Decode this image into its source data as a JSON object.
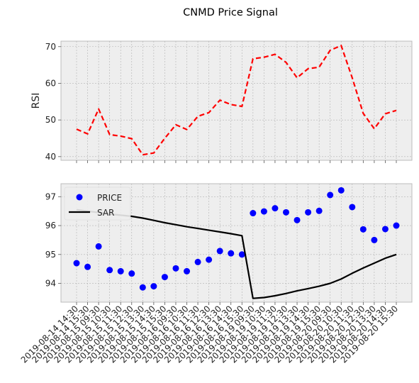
{
  "chart_data": {
    "title": "CNMD Price Signal",
    "x": [
      "2019-08-14 14:30",
      "2019-08-14 15:30",
      "2019-08-15 09:30",
      "2019-08-15 10:30",
      "2019-08-15 11:30",
      "2019-08-15 12:30",
      "2019-08-15 13:30",
      "2019-08-15 14:30",
      "2019-08-15 15:30",
      "2019-08-16 09:30",
      "2019-08-16 10:30",
      "2019-08-16 11:30",
      "2019-08-16 12:30",
      "2019-08-16 13:30",
      "2019-08-16 14:30",
      "2019-08-16 15:30",
      "2019-08-19 09:30",
      "2019-08-19 10:30",
      "2019-08-19 11:30",
      "2019-08-19 12:30",
      "2019-08-19 13:30",
      "2019-08-19 14:30",
      "2019-08-19 15:30",
      "2019-08-20 09:30",
      "2019-08-20 10:30",
      "2019-08-20 11:30",
      "2019-08-20 12:30",
      "2019-08-20 13:30",
      "2019-08-20 14:30",
      "2019-08-20 15:30"
    ],
    "panels": [
      {
        "type": "line",
        "ylabel": "RSI",
        "ylim": [
          39,
          71.5
        ],
        "yticks": [
          40,
          50,
          60,
          70
        ],
        "grid": true,
        "series": [
          {
            "name": "",
            "color": "#ff0000",
            "style": "dashed",
            "values": [
              47.5,
              46.2,
              53.0,
              46.0,
              45.6,
              44.9,
              40.5,
              41.0,
              45.0,
              48.7,
              47.4,
              51.0,
              52.0,
              55.4,
              54.2,
              53.7,
              66.7,
              67.1,
              67.9,
              65.7,
              61.5,
              64.0,
              64.4,
              69.0,
              70.3,
              61.5,
              51.8,
              47.6,
              51.7,
              52.6
            ]
          }
        ]
      },
      {
        "type": "line+scatter",
        "ylabel": "",
        "ylim": [
          93.35,
          97.45
        ],
        "yticks": [
          94,
          95,
          96,
          97
        ],
        "grid": true,
        "legend": "upper-left",
        "series": [
          {
            "name": "PRICE",
            "kind": "scatter",
            "color": "#0000ff",
            "values": [
              94.7,
              94.57,
              95.28,
              94.46,
              94.42,
              94.34,
              93.86,
              93.9,
              94.22,
              94.52,
              94.42,
              94.74,
              94.82,
              95.12,
              95.04,
              95.0,
              96.43,
              96.49,
              96.6,
              96.46,
              96.19,
              96.46,
              96.51,
              97.06,
              97.22,
              96.64,
              95.87,
              95.5,
              95.88,
              96.0
            ]
          },
          {
            "name": "SAR",
            "kind": "line",
            "color": "#000000",
            "values": [
              96.55,
              96.5,
              96.45,
              96.4,
              96.36,
              96.32,
              96.26,
              96.18,
              96.1,
              96.03,
              95.96,
              95.9,
              95.84,
              95.78,
              95.72,
              95.65,
              93.48,
              93.51,
              93.57,
              93.65,
              93.74,
              93.82,
              93.9,
              94.0,
              94.15,
              94.35,
              94.53,
              94.7,
              94.87,
              95.0
            ]
          }
        ]
      }
    ]
  }
}
